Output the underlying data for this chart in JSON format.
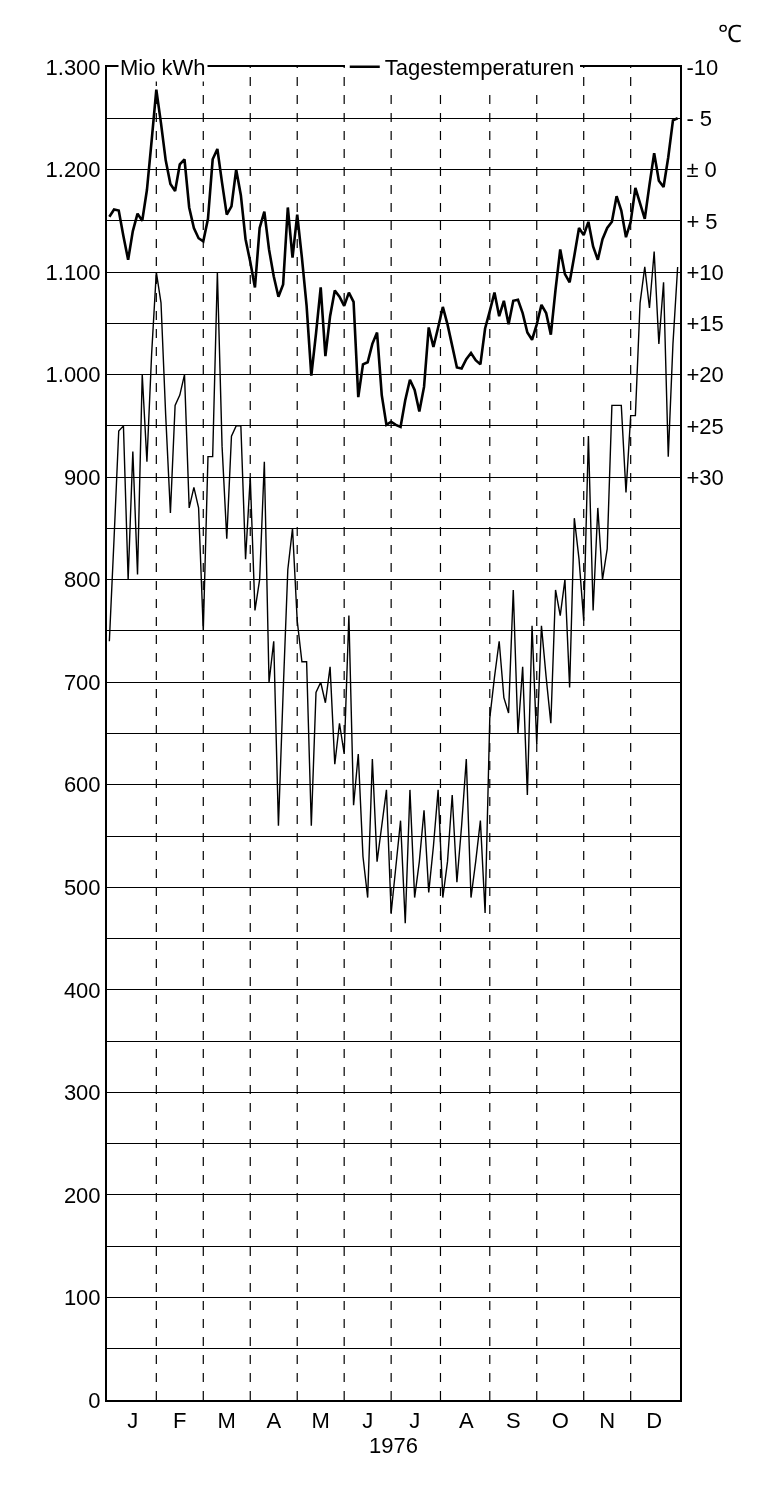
{
  "chart_data": {
    "type": "line",
    "ylabel": "Mio kWh",
    "y2label": "℃",
    "xlabel": "1976",
    "categories": [
      null,
      null,
      null,
      null,
      null,
      "J",
      null,
      null,
      null,
      null,
      null,
      null,
      null,
      null,
      null,
      "F",
      null,
      null,
      null,
      null,
      null,
      null,
      null,
      null,
      null,
      "M",
      null,
      null,
      null,
      null,
      null,
      null,
      null,
      null,
      null,
      "A",
      null,
      null,
      null,
      null,
      null,
      null,
      null,
      null,
      null,
      "M",
      null,
      null,
      null,
      null,
      null,
      null,
      null,
      null,
      null,
      "J",
      null,
      null,
      null,
      null,
      null,
      null,
      null,
      null,
      null,
      "J",
      null,
      null,
      null,
      null,
      null,
      null,
      null,
      null,
      null,
      null,
      "A",
      null,
      null,
      null,
      null,
      null,
      null,
      null,
      null,
      null,
      "S",
      null,
      null,
      null,
      null,
      null,
      null,
      null,
      null,
      null,
      "O",
      null,
      null,
      null,
      null,
      null,
      null,
      null,
      null,
      null,
      "N",
      null,
      null,
      null,
      null,
      null,
      null,
      null,
      null,
      null,
      "D",
      null,
      null,
      null,
      null,
      null
    ],
    "ylim": [
      0,
      1300
    ],
    "yticks": [
      0,
      {
        "value": 50,
        "label": null
      },
      100,
      {
        "value": 150,
        "label": null
      },
      200,
      {
        "value": 250,
        "label": null
      },
      300,
      {
        "value": 350,
        "label": null
      },
      400,
      {
        "value": 450,
        "label": null
      },
      500,
      {
        "value": 550,
        "label": null
      },
      600,
      {
        "value": 650,
        "label": null
      },
      700,
      {
        "value": 750,
        "label": null
      },
      800,
      {
        "value": 850,
        "label": null
      },
      900,
      {
        "value": 950,
        "label": null
      },
      {
        "value": 1000,
        "label": "1.000"
      },
      {
        "value": 1050,
        "label": null
      },
      {
        "value": 1100,
        "label": "1.100"
      },
      {
        "value": 1150,
        "label": null
      },
      {
        "value": 1200,
        "label": "1.200"
      },
      {
        "value": 1250,
        "label": null
      },
      {
        "value": 1300,
        "label": "1.300"
      }
    ],
    "y2lim": [
      120,
      -10
    ],
    "y2ticks": [
      {
        "value": -10,
        "label": "-10"
      },
      {
        "value": -5,
        "label": "- 5"
      },
      {
        "value": 0,
        "label": "± 0"
      },
      {
        "value": 5,
        "label": "+ 5"
      },
      {
        "value": 10,
        "label": "+10"
      },
      {
        "value": 15,
        "label": "+15"
      },
      {
        "value": 20,
        "label": "+20"
      },
      {
        "value": 25,
        "label": "+25"
      },
      {
        "value": 30,
        "label": "+30"
      }
    ],
    "grid": "y",
    "legend": "top",
    "series": [
      {
        "color": "#000000",
        "values": [
          740,
          840,
          945,
          950,
          800,
          925,
          805,
          1000,
          915,
          1020,
          1100,
          1070,
          960,
          865,
          970,
          980,
          1000,
          870,
          890,
          870,
          750,
          920,
          920,
          1100,
          930,
          840,
          940,
          950,
          950,
          820,
          900,
          770,
          800,
          915,
          700,
          740,
          560,
          690,
          810,
          850,
          760,
          720,
          720,
          560,
          690,
          700,
          680,
          715,
          620,
          660,
          630,
          765,
          580,
          630,
          530,
          490,
          625,
          525,
          560,
          595,
          475,
          520,
          565,
          465,
          595,
          490,
          525,
          575,
          495,
          540,
          595,
          490,
          525,
          590,
          505,
          560,
          625,
          490,
          525,
          565,
          475,
          665,
          705,
          740,
          685,
          670,
          790,
          650,
          715,
          590,
          755,
          640,
          755,
          705,
          660,
          790,
          765,
          800,
          695,
          860,
          820,
          760,
          940,
          770,
          870,
          800,
          830,
          970,
          970,
          970,
          885,
          960,
          960,
          1070,
          1105,
          1065,
          1120,
          1030,
          1090,
          920,
          1030,
          1105
        ]
      },
      {
        "name": "Tagestemperaturen",
        "axis": "y2",
        "color": "#000000",
        "values": [
          4.6,
          3.9,
          4.0,
          6.5,
          8.8,
          6.0,
          4.3,
          5.0,
          2.0,
          -2.8,
          -7.8,
          -4.5,
          -0.9,
          1.4,
          2.1,
          -0.5,
          -1.0,
          3.7,
          5.7,
          6.7,
          7.0,
          4.8,
          -1.0,
          -2.0,
          1.3,
          4.4,
          3.6,
          0.0,
          2.5,
          6.8,
          9.0,
          11.5,
          5.7,
          4.1,
          7.8,
          10.4,
          12.4,
          11.2,
          3.7,
          8.6,
          4.4,
          8.6,
          13.3,
          20.1,
          16.0,
          11.5,
          18.2,
          14.3,
          11.8,
          12.4,
          13.3,
          12.0,
          12.9,
          22.2,
          19.0,
          18.8,
          17.0,
          15.9,
          22.0,
          24.9,
          24.6,
          24.9,
          25.1,
          22.5,
          20.5,
          21.5,
          23.6,
          21.2,
          15.4,
          17.3,
          15.4,
          13.4,
          15.1,
          17.2,
          19.3,
          19.4,
          18.5,
          17.9,
          18.6,
          19.0,
          15.5,
          13.8,
          12.0,
          14.3,
          12.8,
          15.1,
          12.8,
          12.7,
          14.0,
          15.9,
          16.6,
          15.1,
          13.2,
          14.0,
          16.1,
          11.7,
          7.8,
          10.2,
          11.0,
          8.4,
          5.7,
          6.4,
          5.1,
          7.5,
          8.8,
          6.8,
          5.7,
          5.1,
          2.6,
          4.0,
          6.6,
          5.1,
          1.8,
          3.3,
          4.8,
          1.5,
          -1.6,
          1.1,
          1.7,
          -1.2,
          -4.8,
          -5.0
        ]
      }
    ]
  }
}
